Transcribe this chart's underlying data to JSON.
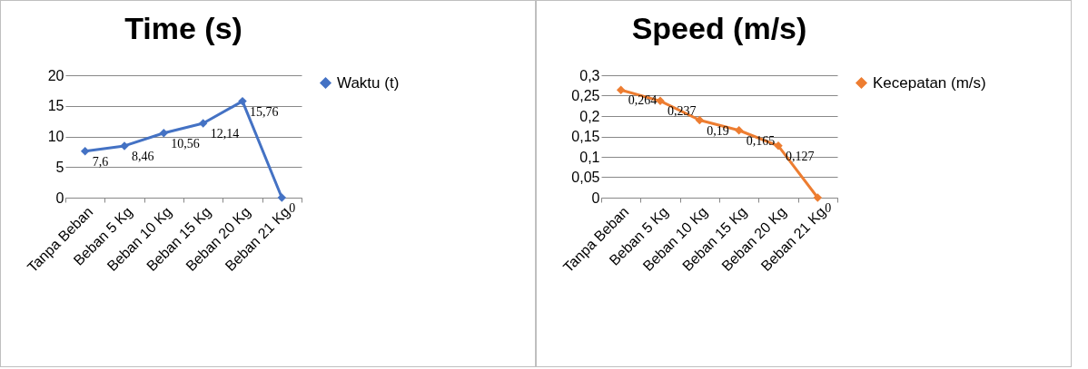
{
  "chart_data": [
    {
      "type": "line",
      "title": "Time (s)",
      "categories": [
        "Tanpa Beban",
        "Beban 5 Kg",
        "Beban 10 Kg",
        "Beban 15 Kg",
        "Beban 20 Kg",
        "Beban 21 Kg"
      ],
      "series": [
        {
          "name": "Waktu (t)",
          "color": "#4472c4",
          "values": [
            7.6,
            8.46,
            10.56,
            12.14,
            15.76,
            0
          ],
          "value_labels": [
            "7,6",
            "8,46",
            "10,56",
            "12,14",
            "15,76",
            "0"
          ]
        }
      ],
      "ylim": [
        0,
        20
      ],
      "yticks": [
        0,
        5,
        10,
        15,
        20
      ],
      "grid": "y",
      "legend": "right",
      "marker": "diamond"
    },
    {
      "type": "line",
      "title": "Speed (m/s)",
      "categories": [
        "Tanpa Beban",
        "Beban 5 Kg",
        "Beban 10 Kg",
        "Beban 15 Kg",
        "Beban 20 Kg",
        "Beban 21 Kg"
      ],
      "series": [
        {
          "name": "Kecepatan (m/s)",
          "color": "#ed7d31",
          "values": [
            0.264,
            0.237,
            0.19,
            0.165,
            0.127,
            0
          ],
          "value_labels": [
            "0,264",
            "0,237",
            "0,19",
            "0,165",
            "0,127",
            "0"
          ]
        }
      ],
      "ylim": [
        0,
        0.3
      ],
      "yticks": [
        0,
        {
          "value": 0.05,
          "label": "0,05"
        },
        {
          "value": 0.1,
          "label": "0,1"
        },
        {
          "value": 0.15,
          "label": "0,15"
        },
        {
          "value": 0.2,
          "label": "0,2"
        },
        {
          "value": 0.25,
          "label": "0,25"
        },
        {
          "value": 0.3,
          "label": "0,3"
        }
      ],
      "grid": "y",
      "legend": "right",
      "marker": "diamond"
    }
  ]
}
